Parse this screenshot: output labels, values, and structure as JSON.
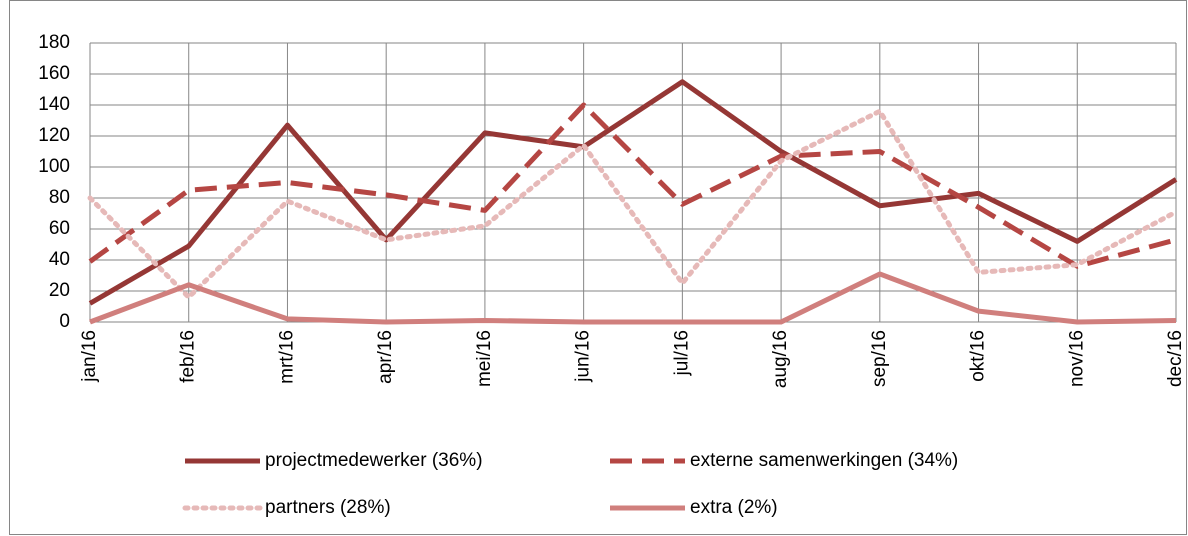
{
  "chart_data": {
    "type": "line",
    "categories": [
      "jan/16",
      "feb/16",
      "mrt/16",
      "apr/16",
      "mei/16",
      "jun/16",
      "jul/16",
      "aug/16",
      "sep/16",
      "okt/16",
      "nov/16",
      "dec/16"
    ],
    "series": [
      {
        "name": "projectmedewerker (36%)",
        "color": "#953735",
        "style": "solid",
        "values": [
          12,
          49,
          127,
          53,
          122,
          113,
          155,
          110,
          75,
          83,
          52,
          92
        ]
      },
      {
        "name": "externe samenwerkingen (34%)",
        "color": "#b54643",
        "style": "dashed",
        "values": [
          39,
          85,
          90,
          82,
          72,
          140,
          76,
          107,
          110,
          74,
          36,
          53
        ]
      },
      {
        "name": "partners (28%)",
        "color": "#e6b9b8",
        "style": "dotted",
        "values": [
          80,
          16,
          78,
          53,
          62,
          114,
          25,
          104,
          136,
          32,
          37,
          71
        ]
      },
      {
        "name": "extra (2%)",
        "color": "#d07f7d",
        "style": "solid",
        "values": [
          0,
          24,
          2,
          0,
          1,
          0,
          0,
          0,
          31,
          7,
          0,
          1
        ]
      }
    ],
    "ylim": [
      0,
      180
    ],
    "yticks": [
      0,
      20,
      40,
      60,
      80,
      100,
      120,
      140,
      160,
      180
    ],
    "grid": true,
    "legend": "bottom"
  }
}
